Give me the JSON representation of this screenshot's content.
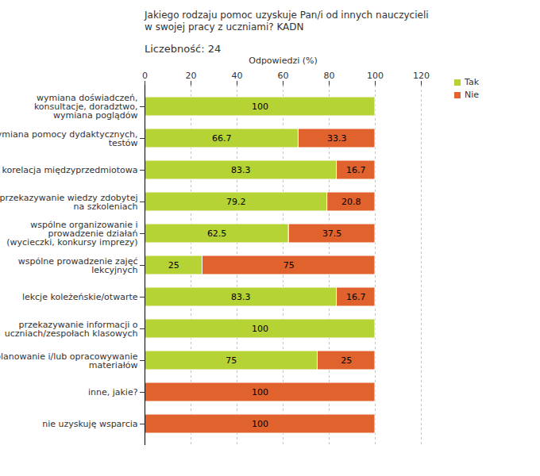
{
  "chart_data": {
    "type": "bar",
    "orientation": "horizontal",
    "stacked": true,
    "data_labels": true,
    "title": "Jakiego rodzaju pomoc uzyskuje Pan/i od innych nauczycieli w swojej pracy z uczniami? KADN",
    "subtitle": "Liczebność: 24",
    "x_label": "Odpowiedzi (%)",
    "categories": [
      "wymiana doświadczeń,\nkonsultacje, doradztwo,\nwymiana poglądów",
      "wymiana pomocy dydaktycznych,\ntestów",
      "korelacja międzyprzedmiotowa",
      "przekazywanie wiedzy zdobytej\nna szkoleniach",
      "wspólne organizowanie i\nprowadzenie działań\n(wycieczki, konkursy imprezy)",
      "wspólne prowadzenie zajęć\nlekcyjnych",
      "lekcje koleżeńskie/otwarte",
      "przekazywanie informacji o\nuczniach/zespołach klasowych",
      "planowanie i/lub opracowywanie\nmateriałów",
      "inne, jakie?",
      "nie uzyskuję wsparcia"
    ],
    "series": [
      {
        "name": "Tak",
        "color": "#b5d334",
        "values": [
          100,
          66.7,
          83.3,
          79.2,
          62.5,
          25,
          83.3,
          100,
          75,
          0,
          0
        ]
      },
      {
        "name": "Nie",
        "color": "#e0622c",
        "values": [
          0,
          33.3,
          16.7,
          20.8,
          37.5,
          75,
          16.7,
          0,
          25,
          100,
          100
        ]
      }
    ],
    "xlim": [
      0,
      120
    ],
    "xticks": [
      0,
      20,
      40,
      60,
      80,
      100,
      120
    ],
    "grid": true,
    "legend": "top right"
  }
}
